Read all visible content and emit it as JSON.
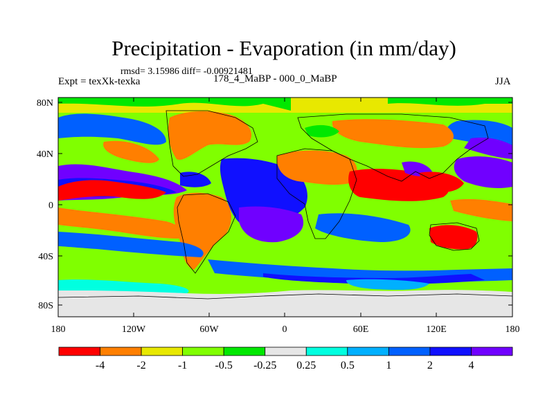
{
  "title": "Precipitation - Evaporation (in mm/day)",
  "stats": "rmsd= 3.15986 diff= -0.00921481",
  "experiment": "Expt = texXk-texka",
  "case": "178_4_MaBP - 000_0_MaBP",
  "season": "JJA",
  "axes": {
    "lat_labels": [
      "80N",
      "40N",
      "0",
      "40S",
      "80S"
    ],
    "lon_labels": [
      "180",
      "120W",
      "60W",
      "0",
      "60E",
      "120E",
      "180"
    ]
  },
  "colorbar": {
    "colors": [
      "#ff0000",
      "#ff7f00",
      "#e8e800",
      "#80ff00",
      "#00e800",
      "#e6e6e6",
      "#00ffe0",
      "#00b0ff",
      "#0060ff",
      "#1010ff",
      "#7000ff"
    ],
    "labels": [
      "-4",
      "-2",
      "-1",
      "-0.5",
      "-0.25",
      "0.25",
      "0.5",
      "1",
      "2",
      "4"
    ]
  },
  "palette": {
    "red": "#ff0000",
    "orange": "#ff7f00",
    "yellow": "#e8e800",
    "lime": "#80ff00",
    "green": "#00e800",
    "gray": "#e6e6e6",
    "cyan": "#00ffe0",
    "sky": "#00b0ff",
    "blue": "#0060ff",
    "deep_blue": "#1010ff",
    "purple": "#7000ff"
  }
}
